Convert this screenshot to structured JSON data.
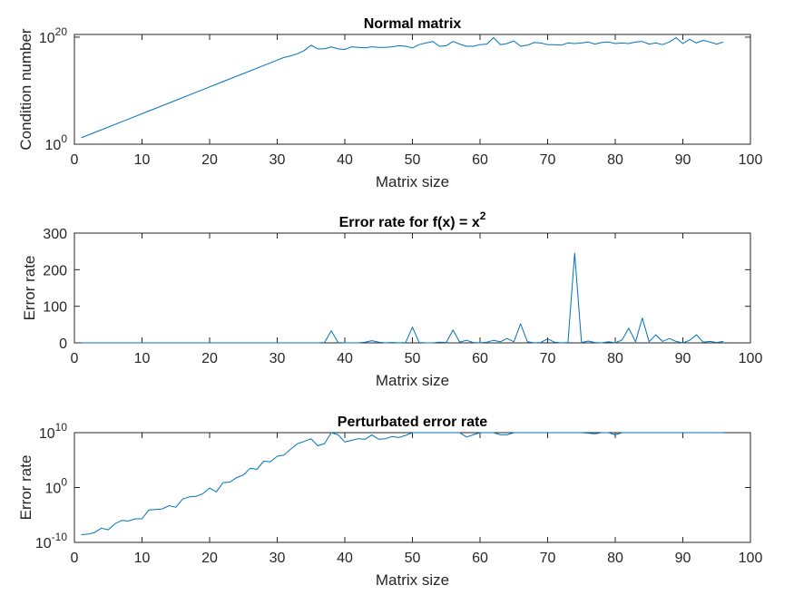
{
  "colors": {
    "series": "#0072BD",
    "axes": "#262626",
    "background": "#ffffff"
  },
  "chart_data": [
    {
      "type": "line",
      "title": "Normal matrix",
      "title_parts": [],
      "xlabel": "Matrix size",
      "ylabel": "Condition number",
      "yscale": "log",
      "xlim": [
        0,
        100
      ],
      "ylim_exp": [
        0,
        20.5
      ],
      "xticks": [
        0,
        10,
        20,
        30,
        40,
        50,
        60,
        70,
        80,
        90,
        100
      ],
      "xtick_labels": [
        "0",
        "10",
        "20",
        "30",
        "40",
        "50",
        "60",
        "70",
        "80",
        "90",
        "100"
      ],
      "yticks": [
        {
          "base": "10",
          "exp": "0",
          "value_exp": 0
        },
        {
          "base": "10",
          "exp": "20",
          "value_exp": 20
        }
      ],
      "grid": false,
      "series": [
        {
          "x": [
            1,
            2,
            3,
            4,
            5,
            6,
            7,
            8,
            9,
            10,
            11,
            12,
            13,
            14,
            15,
            16,
            17,
            18,
            19,
            20,
            21,
            22,
            23,
            24,
            25,
            26,
            27,
            28,
            29,
            30,
            31,
            32,
            33,
            34,
            35,
            36,
            37,
            38,
            39,
            40,
            41,
            42,
            43,
            44,
            45,
            46,
            47,
            48,
            49,
            50,
            51,
            52,
            53,
            54,
            55,
            56,
            57,
            58,
            59,
            60,
            61,
            62,
            63,
            64,
            65,
            66,
            67,
            68,
            69,
            70,
            71,
            72,
            73,
            74,
            75,
            76,
            77,
            78,
            79,
            80,
            81,
            82,
            83,
            84,
            85,
            86,
            87,
            88,
            89,
            90,
            91,
            92,
            93,
            94,
            95,
            96
          ],
          "log10_values": [
            1.2,
            1.7,
            2.2,
            2.7,
            3.2,
            3.7,
            4.2,
            4.7,
            5.2,
            5.7,
            6.2,
            6.7,
            7.2,
            7.7,
            8.2,
            8.7,
            9.2,
            9.7,
            10.2,
            10.7,
            11.2,
            11.7,
            12.2,
            12.7,
            13.2,
            13.7,
            14.2,
            14.7,
            15.2,
            15.7,
            16.2,
            16.5,
            16.9,
            17.5,
            18.5,
            17.8,
            17.8,
            18.2,
            17.8,
            17.7,
            18.2,
            18.1,
            18.0,
            18.2,
            18.1,
            18.1,
            18.2,
            18.4,
            18.3,
            18.0,
            18.6,
            18.9,
            19.2,
            18.3,
            18.4,
            19.2,
            18.7,
            18.3,
            18.3,
            18.6,
            18.7,
            19.9,
            18.6,
            18.8,
            19.3,
            18.3,
            18.5,
            19.0,
            18.9,
            18.6,
            18.6,
            18.5,
            18.9,
            18.8,
            18.9,
            19.1,
            18.7,
            19.0,
            19.1,
            18.8,
            18.9,
            18.8,
            19.1,
            19.2,
            18.7,
            18.9,
            18.6,
            19.1,
            19.9,
            18.8,
            19.6,
            18.9,
            19.4,
            19.1,
            18.7,
            19.1
          ]
        }
      ]
    },
    {
      "type": "line",
      "title": "",
      "title_parts": [
        "Error rate for f(x) = x",
        "2"
      ],
      "xlabel": "Matrix size",
      "ylabel": "Error rate",
      "yscale": "linear",
      "xlim": [
        0,
        100
      ],
      "ylim": [
        0,
        300
      ],
      "xticks": [
        0,
        10,
        20,
        30,
        40,
        50,
        60,
        70,
        80,
        90,
        100
      ],
      "xtick_labels": [
        "0",
        "10",
        "20",
        "30",
        "40",
        "50",
        "60",
        "70",
        "80",
        "90",
        "100"
      ],
      "yticks": [
        0,
        100,
        200,
        300
      ],
      "ytick_labels": [
        "0",
        "100",
        "200",
        "300"
      ],
      "grid": false,
      "series": [
        {
          "x": [
            1,
            2,
            3,
            4,
            5,
            6,
            7,
            8,
            9,
            10,
            11,
            12,
            13,
            14,
            15,
            16,
            17,
            18,
            19,
            20,
            21,
            22,
            23,
            24,
            25,
            26,
            27,
            28,
            29,
            30,
            31,
            32,
            33,
            34,
            35,
            36,
            37,
            38,
            39,
            40,
            41,
            42,
            43,
            44,
            45,
            46,
            47,
            48,
            49,
            50,
            51,
            52,
            53,
            54,
            55,
            56,
            57,
            58,
            59,
            60,
            61,
            62,
            63,
            64,
            65,
            66,
            67,
            68,
            69,
            70,
            71,
            72,
            73,
            74,
            75,
            76,
            77,
            78,
            79,
            80,
            81,
            82,
            83,
            84,
            85,
            86,
            87,
            88,
            89,
            90,
            91,
            92,
            93,
            94,
            95,
            96
          ],
          "values": [
            0,
            0,
            0,
            0,
            0,
            0,
            0,
            0,
            0,
            0,
            0,
            0,
            0,
            0,
            0,
            0,
            0,
            0,
            0,
            0,
            0,
            0,
            0,
            0,
            0,
            0,
            0,
            0,
            0,
            0,
            0,
            0,
            0,
            0,
            0,
            0,
            1,
            33,
            1,
            0,
            0,
            0,
            2,
            6,
            2,
            0,
            1,
            0,
            1,
            43,
            1,
            0,
            0,
            2,
            1,
            35,
            2,
            7,
            1,
            0,
            2,
            7,
            3,
            12,
            3,
            52,
            3,
            0,
            1,
            11,
            2,
            0,
            1,
            245,
            1,
            5,
            1,
            0,
            3,
            0,
            8,
            40,
            3,
            68,
            3,
            22,
            4,
            12,
            4,
            0,
            7,
            22,
            2,
            4,
            1,
            4
          ]
        }
      ]
    },
    {
      "type": "line",
      "title": "Perturbated error rate",
      "title_parts": [],
      "xlabel": "Matrix size",
      "ylabel": "Error rate",
      "yscale": "log",
      "xlim": [
        0,
        100
      ],
      "ylim_exp": [
        -10,
        10
      ],
      "xticks": [
        0,
        10,
        20,
        30,
        40,
        50,
        60,
        70,
        80,
        90,
        100
      ],
      "xtick_labels": [
        "0",
        "10",
        "20",
        "30",
        "40",
        "50",
        "60",
        "70",
        "80",
        "90",
        "100"
      ],
      "yticks": [
        {
          "base": "10",
          "exp": "-10",
          "value_exp": -10
        },
        {
          "base": "10",
          "exp": "0",
          "value_exp": 0
        },
        {
          "base": "10",
          "exp": "10",
          "value_exp": 10
        }
      ],
      "grid": false,
      "series": [
        {
          "x": [
            1,
            2,
            3,
            4,
            5,
            6,
            7,
            8,
            9,
            10,
            11,
            12,
            13,
            14,
            15,
            16,
            17,
            18,
            19,
            20,
            21,
            22,
            23,
            24,
            25,
            26,
            27,
            28,
            29,
            30,
            31,
            32,
            33,
            34,
            35,
            36,
            37,
            38,
            39,
            40,
            41,
            42,
            43,
            44,
            45,
            46,
            47,
            48,
            49,
            50,
            51,
            52,
            53,
            54,
            55,
            56,
            57,
            58,
            59,
            60,
            61,
            62,
            63,
            64,
            65,
            66,
            67,
            68,
            69,
            70,
            71,
            72,
            73,
            74,
            75,
            76,
            77,
            78,
            79,
            80,
            81,
            82,
            83,
            84,
            85,
            86,
            87,
            88,
            89,
            90,
            91,
            92,
            93,
            94,
            95,
            96
          ],
          "log10_values": [
            -8.6,
            -8.5,
            -8.2,
            -7.4,
            -7.7,
            -6.6,
            -6.0,
            -6.1,
            -5.7,
            -5.7,
            -4.1,
            -4.0,
            -3.9,
            -3.3,
            -3.6,
            -2.1,
            -1.7,
            -1.6,
            -1.1,
            -0.1,
            -0.8,
            0.9,
            1.0,
            1.8,
            2.3,
            3.5,
            3.3,
            4.8,
            4.7,
            5.7,
            5.9,
            7.0,
            8.0,
            8.4,
            8.9,
            7.6,
            8.0,
            10.6,
            9.6,
            8.3,
            8.6,
            8.9,
            8.8,
            9.6,
            8.8,
            8.9,
            9.3,
            9.1,
            9.5,
            10.4,
            12.0,
            10.5,
            10.3,
            10.6,
            10.0,
            11.6,
            10.2,
            9.2,
            9.6,
            10.3,
            11.0,
            10.7,
            9.6,
            9.6,
            10.2,
            11.5,
            11.4,
            10.8,
            11.0,
            10.9,
            10.2,
            10.2,
            10.9,
            11.5,
            10.2,
            9.9,
            9.8,
            10.3,
            10.7,
            9.6,
            10.0,
            10.9,
            10.3,
            10.7,
            10.9,
            11.2,
            10.3,
            10.8,
            10.1,
            10.4,
            10.9,
            11.8,
            11.5,
            10.8,
            10.4,
            10.2
          ]
        }
      ]
    }
  ]
}
